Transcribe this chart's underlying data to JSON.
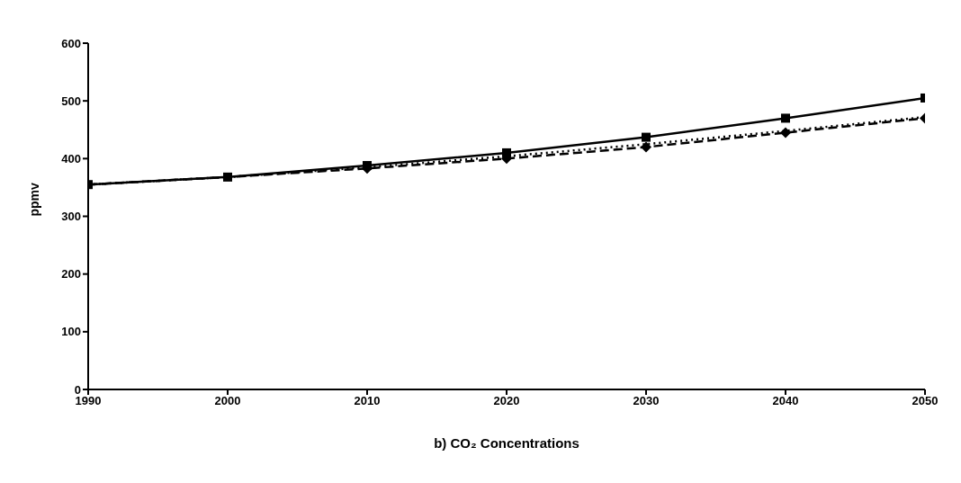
{
  "chart_data": {
    "type": "line",
    "title": "b) CO₂ Concentrations",
    "ylabel": "ppmv",
    "x": [
      1990,
      2000,
      2010,
      2020,
      2030,
      2040,
      2050
    ],
    "series": [
      {
        "color": "#000000",
        "marker": "square",
        "line_style": "solid",
        "values": [
          355,
          368,
          388,
          410,
          437,
          470,
          505
        ]
      },
      {
        "color": "#000000",
        "marker": "none",
        "line_style": "dotted",
        "values": [
          355,
          368,
          385,
          404,
          425,
          448,
          472
        ]
      },
      {
        "color": "#000000",
        "marker": "diamond",
        "line_style": "dashed",
        "values": [
          355,
          368,
          383,
          400,
          420,
          445,
          470
        ]
      }
    ],
    "xlim": [
      1990,
      2050
    ],
    "xticks": [
      1990,
      2000,
      2010,
      2020,
      2030,
      2040,
      2050
    ],
    "ylim": [
      0,
      600
    ],
    "yticks": [
      0,
      100,
      200,
      300,
      400,
      500,
      600
    ],
    "grid": false
  }
}
